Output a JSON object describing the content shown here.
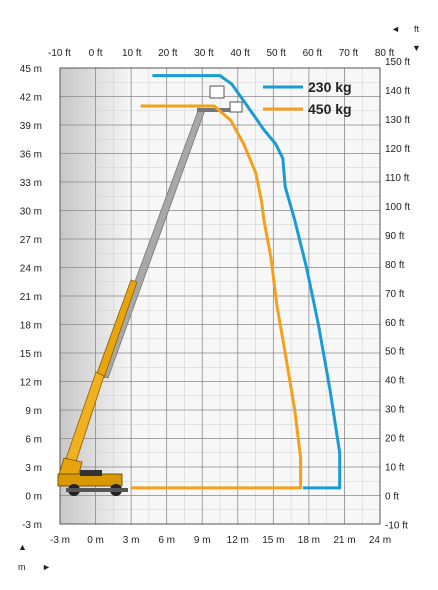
{
  "chart_data": {
    "type": "line",
    "title": "",
    "xlabel": "",
    "ylabel": "",
    "x_unit_label": "m",
    "y_unit_label": "ft",
    "xlim_m": [
      -3,
      24
    ],
    "ylim_m": [
      -3,
      45
    ],
    "x_ticks_m": [
      {
        "v": -3,
        "label": "-3 m"
      },
      {
        "v": 0,
        "label": "0 m"
      },
      {
        "v": 3,
        "label": "3 m"
      },
      {
        "v": 6,
        "label": "6 m"
      },
      {
        "v": 9,
        "label": "9 m"
      },
      {
        "v": 12,
        "label": "12 m"
      },
      {
        "v": 15,
        "label": "15 m"
      },
      {
        "v": 18,
        "label": "18 m"
      },
      {
        "v": 21,
        "label": "21 m"
      },
      {
        "v": 24,
        "label": "24 m"
      }
    ],
    "x_ticks_ft": [
      {
        "v": -10,
        "label": "-10 ft"
      },
      {
        "v": 0,
        "label": "0 ft"
      },
      {
        "v": 10,
        "label": "10 ft"
      },
      {
        "v": 20,
        "label": "20 ft"
      },
      {
        "v": 30,
        "label": "30 ft"
      },
      {
        "v": 40,
        "label": "40 ft"
      },
      {
        "v": 50,
        "label": "50 ft"
      },
      {
        "v": 60,
        "label": "60 ft"
      },
      {
        "v": 70,
        "label": "70 ft"
      },
      {
        "v": 80,
        "label": "80 ft"
      }
    ],
    "y_ticks_m": [
      {
        "v": -3,
        "label": "-3 m"
      },
      {
        "v": 0,
        "label": "0 m"
      },
      {
        "v": 3,
        "label": "3 m"
      },
      {
        "v": 6,
        "label": "6 m"
      },
      {
        "v": 9,
        "label": "9 m"
      },
      {
        "v": 12,
        "label": "12 m"
      },
      {
        "v": 15,
        "label": "15 m"
      },
      {
        "v": 18,
        "label": "18 m"
      },
      {
        "v": 21,
        "label": "21 m"
      },
      {
        "v": 24,
        "label": "24 m"
      },
      {
        "v": 27,
        "label": "27 m"
      },
      {
        "v": 30,
        "label": "30 m"
      },
      {
        "v": 33,
        "label": "33 m"
      },
      {
        "v": 36,
        "label": "36 m"
      },
      {
        "v": 39,
        "label": "39 m"
      },
      {
        "v": 42,
        "label": "42 m"
      },
      {
        "v": 45,
        "label": "45 m"
      }
    ],
    "y_ticks_ft": [
      {
        "v": -10,
        "label": "-10 ft"
      },
      {
        "v": 0,
        "label": "0 ft"
      },
      {
        "v": 10,
        "label": "10 ft"
      },
      {
        "v": 20,
        "label": "20 ft"
      },
      {
        "v": 30,
        "label": "30 ft"
      },
      {
        "v": 40,
        "label": "40 ft"
      },
      {
        "v": 50,
        "label": "50 ft"
      },
      {
        "v": 60,
        "label": "60 ft"
      },
      {
        "v": 70,
        "label": "70 ft"
      },
      {
        "v": 80,
        "label": "80 ft"
      },
      {
        "v": 90,
        "label": "90 ft"
      },
      {
        "v": 100,
        "label": "100 ft"
      },
      {
        "v": 110,
        "label": "110 ft"
      },
      {
        "v": 120,
        "label": "120 ft"
      },
      {
        "v": 130,
        "label": "130 ft"
      },
      {
        "v": 140,
        "label": "140 ft"
      },
      {
        "v": 150,
        "label": "150 ft"
      }
    ],
    "grid": true,
    "legend_position": "top-right",
    "series": [
      {
        "name": "230 kg",
        "color": "#1a9ad6",
        "points": [
          [
            4.8,
            44.2
          ],
          [
            10.5,
            44.2
          ],
          [
            11.5,
            43.3
          ],
          [
            12.8,
            41.0
          ],
          [
            14.2,
            38.5
          ],
          [
            15.2,
            37.0
          ],
          [
            15.8,
            35.5
          ],
          [
            16.0,
            32.5
          ],
          [
            16.8,
            29.0
          ],
          [
            17.8,
            24.0
          ],
          [
            18.8,
            18.0
          ],
          [
            19.8,
            11.0
          ],
          [
            20.6,
            4.5
          ],
          [
            20.6,
            0.8
          ],
          [
            17.5,
            0.8
          ]
        ]
      },
      {
        "name": "450 kg",
        "color": "#f4a01b",
        "points": [
          [
            3.8,
            41.0
          ],
          [
            10.0,
            41.0
          ],
          [
            11.4,
            39.5
          ],
          [
            12.5,
            37.0
          ],
          [
            13.5,
            34.0
          ],
          [
            14.0,
            31.0
          ],
          [
            14.2,
            29.0
          ],
          [
            14.8,
            25.0
          ],
          [
            15.3,
            20.0
          ],
          [
            16.0,
            15.0
          ],
          [
            16.8,
            9.0
          ],
          [
            17.3,
            4.0
          ],
          [
            17.3,
            0.8
          ],
          [
            3.0,
            0.8
          ]
        ]
      }
    ]
  }
}
